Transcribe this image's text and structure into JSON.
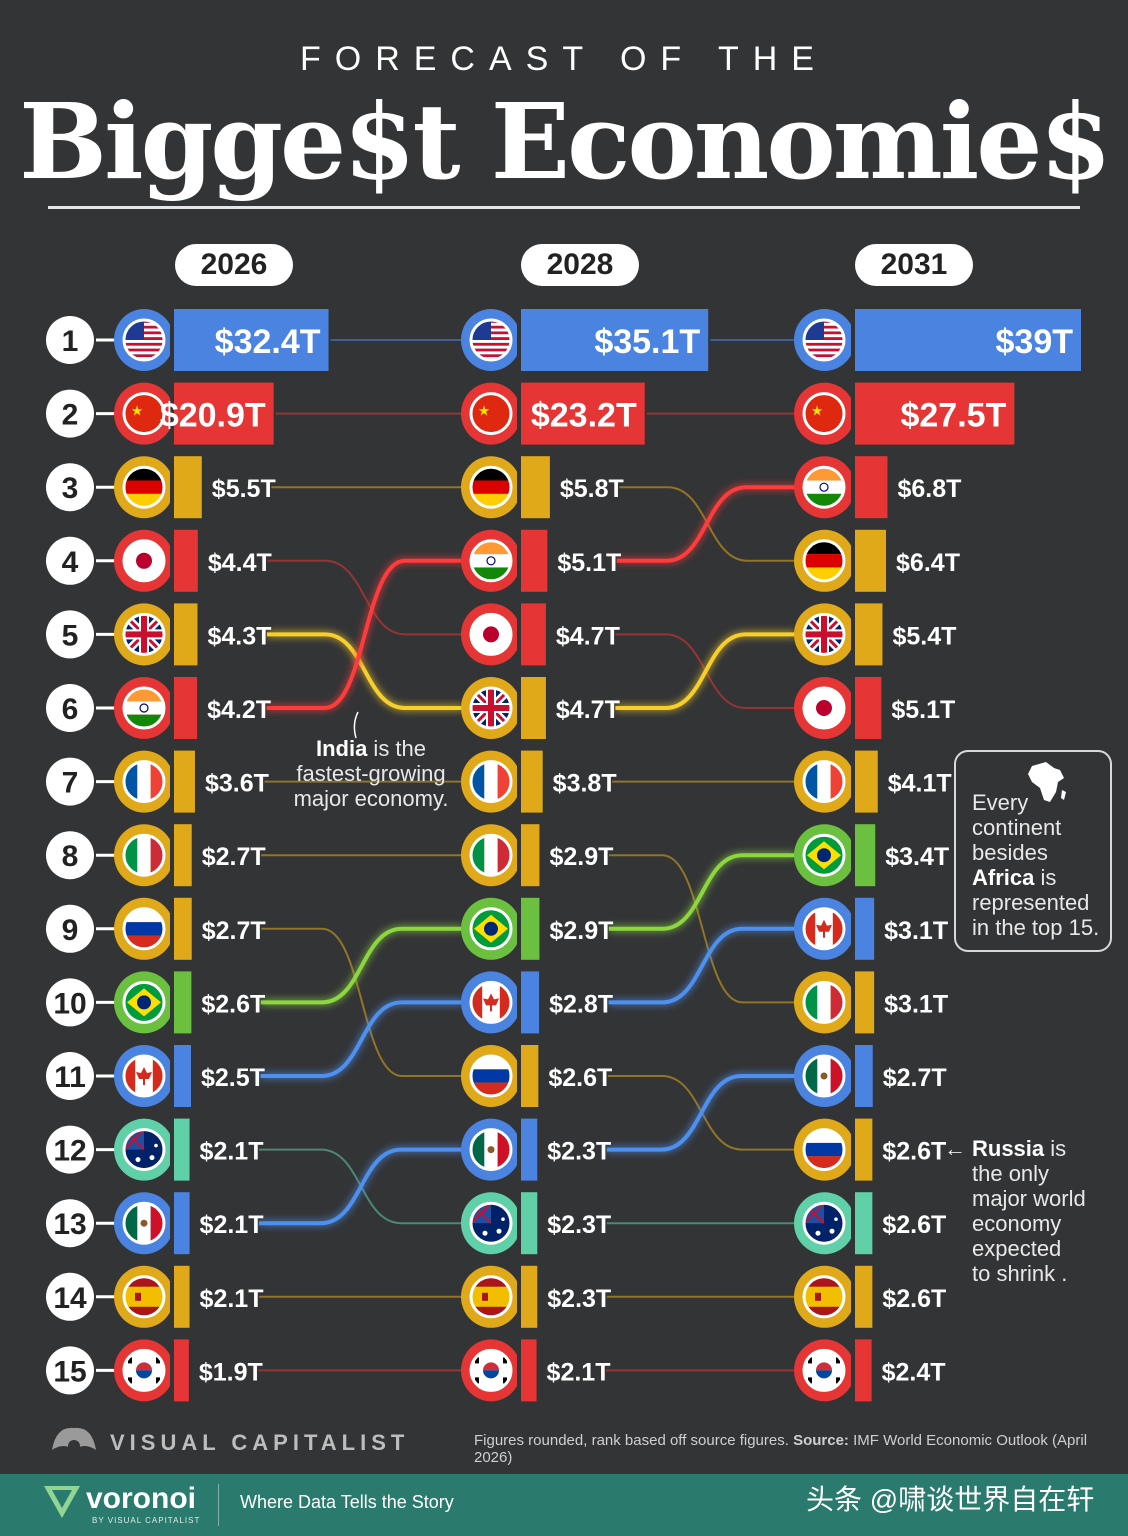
{
  "header": {
    "subtitle": "FORECAST OF THE",
    "title": "Bigge$t Economie$"
  },
  "years": [
    "2026",
    "2028",
    "2031"
  ],
  "colors": {
    "background": "#333436",
    "bar_blue": "#4a84e0",
    "bar_red": "#e53535",
    "bar_yellow": "#e0a91a",
    "bar_green": "#6cc040",
    "bar_teal": "#5fd0a8",
    "line_india": "#ff3b3b",
    "line_brazil": "#8cd640",
    "line_canada": "#4d90ee",
    "line_uk": "#f7cf2a",
    "line_mexico": "#4d90ee"
  },
  "chart_data": {
    "type": "table",
    "title": "Forecast of the Biggest Economies",
    "unit": "T",
    "columns": [
      {
        "year": "2026",
        "rows": [
          {
            "rank": 1,
            "country": "United States",
            "flag": "us-flag-icon",
            "value": 32.4,
            "label": "$32.4T",
            "color": "#4a84e0"
          },
          {
            "rank": 2,
            "country": "China",
            "flag": "cn-flag-icon",
            "value": 20.9,
            "label": "$20.9T",
            "color": "#e53535"
          },
          {
            "rank": 3,
            "country": "Germany",
            "flag": "de-flag-icon",
            "value": 5.5,
            "label": "$5.5T",
            "color": "#e0a91a"
          },
          {
            "rank": 4,
            "country": "Japan",
            "flag": "jp-flag-icon",
            "value": 4.4,
            "label": "$4.4T",
            "color": "#e53535"
          },
          {
            "rank": 5,
            "country": "United Kingdom",
            "flag": "gb-flag-icon",
            "value": 4.3,
            "label": "$4.3T",
            "color": "#e0a91a"
          },
          {
            "rank": 6,
            "country": "India",
            "flag": "in-flag-icon",
            "value": 4.2,
            "label": "$4.2T",
            "color": "#e53535"
          },
          {
            "rank": 7,
            "country": "France",
            "flag": "fr-flag-icon",
            "value": 3.6,
            "label": "$3.6T",
            "color": "#e0a91a"
          },
          {
            "rank": 8,
            "country": "Italy",
            "flag": "it-flag-icon",
            "value": 2.7,
            "label": "$2.7T",
            "color": "#e0a91a"
          },
          {
            "rank": 9,
            "country": "Russia",
            "flag": "ru-flag-icon",
            "value": 2.7,
            "label": "$2.7T",
            "color": "#e0a91a"
          },
          {
            "rank": 10,
            "country": "Brazil",
            "flag": "br-flag-icon",
            "value": 2.6,
            "label": "$2.6T",
            "color": "#6cc040"
          },
          {
            "rank": 11,
            "country": "Canada",
            "flag": "ca-flag-icon",
            "value": 2.5,
            "label": "$2.5T",
            "color": "#4a84e0"
          },
          {
            "rank": 12,
            "country": "Australia",
            "flag": "au-flag-icon",
            "value": 2.1,
            "label": "$2.1T",
            "color": "#5fd0a8"
          },
          {
            "rank": 13,
            "country": "Mexico",
            "flag": "mx-flag-icon",
            "value": 2.1,
            "label": "$2.1T",
            "color": "#4a84e0"
          },
          {
            "rank": 14,
            "country": "Spain",
            "flag": "es-flag-icon",
            "value": 2.1,
            "label": "$2.1T",
            "color": "#e0a91a"
          },
          {
            "rank": 15,
            "country": "South Korea",
            "flag": "kr-flag-icon",
            "value": 1.9,
            "label": "$1.9T",
            "color": "#e53535"
          }
        ]
      },
      {
        "year": "2028",
        "rows": [
          {
            "rank": 1,
            "country": "United States",
            "flag": "us-flag-icon",
            "value": 35.1,
            "label": "$35.1T",
            "color": "#4a84e0"
          },
          {
            "rank": 2,
            "country": "China",
            "flag": "cn-flag-icon",
            "value": 23.2,
            "label": "$23.2T",
            "color": "#e53535"
          },
          {
            "rank": 3,
            "country": "Germany",
            "flag": "de-flag-icon",
            "value": 5.8,
            "label": "$5.8T",
            "color": "#e0a91a"
          },
          {
            "rank": 4,
            "country": "India",
            "flag": "in-flag-icon",
            "value": 5.1,
            "label": "$5.1T",
            "color": "#e53535"
          },
          {
            "rank": 5,
            "country": "Japan",
            "flag": "jp-flag-icon",
            "value": 4.7,
            "label": "$4.7T",
            "color": "#e53535"
          },
          {
            "rank": 6,
            "country": "United Kingdom",
            "flag": "gb-flag-icon",
            "value": 4.7,
            "label": "$4.7T",
            "color": "#e0a91a"
          },
          {
            "rank": 7,
            "country": "France",
            "flag": "fr-flag-icon",
            "value": 3.8,
            "label": "$3.8T",
            "color": "#e0a91a"
          },
          {
            "rank": 8,
            "country": "Italy",
            "flag": "it-flag-icon",
            "value": 2.9,
            "label": "$2.9T",
            "color": "#e0a91a"
          },
          {
            "rank": 9,
            "country": "Brazil",
            "flag": "br-flag-icon",
            "value": 2.9,
            "label": "$2.9T",
            "color": "#6cc040"
          },
          {
            "rank": 10,
            "country": "Canada",
            "flag": "ca-flag-icon",
            "value": 2.8,
            "label": "$2.8T",
            "color": "#4a84e0"
          },
          {
            "rank": 11,
            "country": "Russia",
            "flag": "ru-flag-icon",
            "value": 2.6,
            "label": "$2.6T",
            "color": "#e0a91a"
          },
          {
            "rank": 12,
            "country": "Mexico",
            "flag": "mx-flag-icon",
            "value": 2.3,
            "label": "$2.3T",
            "color": "#4a84e0"
          },
          {
            "rank": 13,
            "country": "Australia",
            "flag": "au-flag-icon",
            "value": 2.3,
            "label": "$2.3T",
            "color": "#5fd0a8"
          },
          {
            "rank": 14,
            "country": "Spain",
            "flag": "es-flag-icon",
            "value": 2.3,
            "label": "$2.3T",
            "color": "#e0a91a"
          },
          {
            "rank": 15,
            "country": "South Korea",
            "flag": "kr-flag-icon",
            "value": 2.1,
            "label": "$2.1T",
            "color": "#e53535"
          }
        ]
      },
      {
        "year": "2031",
        "rows": [
          {
            "rank": 1,
            "country": "United States",
            "flag": "us-flag-icon",
            "value": 39,
            "label": "$39T",
            "color": "#4a84e0"
          },
          {
            "rank": 2,
            "country": "China",
            "flag": "cn-flag-icon",
            "value": 27.5,
            "label": "$27.5T",
            "color": "#e53535"
          },
          {
            "rank": 3,
            "country": "India",
            "flag": "in-flag-icon",
            "value": 6.8,
            "label": "$6.8T",
            "color": "#e53535"
          },
          {
            "rank": 4,
            "country": "Germany",
            "flag": "de-flag-icon",
            "value": 6.4,
            "label": "$6.4T",
            "color": "#e0a91a"
          },
          {
            "rank": 5,
            "country": "United Kingdom",
            "flag": "gb-flag-icon",
            "value": 5.4,
            "label": "$5.4T",
            "color": "#e0a91a"
          },
          {
            "rank": 6,
            "country": "Japan",
            "flag": "jp-flag-icon",
            "value": 5.1,
            "label": "$5.1T",
            "color": "#e53535"
          },
          {
            "rank": 7,
            "country": "France",
            "flag": "fr-flag-icon",
            "value": 4.1,
            "label": "$4.1T",
            "color": "#e0a91a"
          },
          {
            "rank": 8,
            "country": "Brazil",
            "flag": "br-flag-icon",
            "value": 3.4,
            "label": "$3.4T",
            "color": "#6cc040"
          },
          {
            "rank": 9,
            "country": "Canada",
            "flag": "ca-flag-icon",
            "value": 3.1,
            "label": "$3.1T",
            "color": "#4a84e0"
          },
          {
            "rank": 10,
            "country": "Italy",
            "flag": "it-flag-icon",
            "value": 3.1,
            "label": "$3.1T",
            "color": "#e0a91a"
          },
          {
            "rank": 11,
            "country": "Mexico",
            "flag": "mx-flag-icon",
            "value": 2.7,
            "label": "$2.7T",
            "color": "#4a84e0"
          },
          {
            "rank": 12,
            "country": "Russia",
            "flag": "ru-flag-icon",
            "value": 2.6,
            "label": "$2.6T",
            "color": "#e0a91a"
          },
          {
            "rank": 13,
            "country": "Australia",
            "flag": "au-flag-icon",
            "value": 2.6,
            "label": "$2.6T",
            "color": "#5fd0a8"
          },
          {
            "rank": 14,
            "country": "Spain",
            "flag": "es-flag-icon",
            "value": 2.6,
            "label": "$2.6T",
            "color": "#e0a91a"
          },
          {
            "rank": 15,
            "country": "South Korea",
            "flag": "kr-flag-icon",
            "value": 2.4,
            "label": "$2.4T",
            "color": "#e53535"
          }
        ]
      }
    ],
    "highlighted_movers": [
      "India",
      "Brazil",
      "Canada",
      "United Kingdom",
      "Mexico"
    ]
  },
  "annotations": {
    "india_bold": "India",
    "india_rest_1": " is the",
    "india_line2": "fastest-growing",
    "india_line3": "major economy.",
    "africa_line1": "Every",
    "africa_line2": "continent",
    "africa_line3": "besides",
    "africa_bold": "Africa",
    "africa_line4_rest": " is",
    "africa_line5": "represented",
    "africa_line6": "in the top 15.",
    "russia_bold": "Russia",
    "russia_line1_rest": " is",
    "russia_line2": "the only",
    "russia_line3": "major world",
    "russia_line4": "economy",
    "russia_line5": "expected",
    "russia_line6": "to shrink .",
    "russia_arrow": "←"
  },
  "footer": {
    "source_prefix": "Figures rounded, rank based off source figures.",
    "source_label": "Source:",
    "source_text": "IMF World Economic Outlook (April 2026)",
    "vc_brand": "VISUAL CAPITALIST",
    "voronoi": "voronoi",
    "voronoi_sub": "BY VISUAL CAPITALIST",
    "tagline": "Where Data Tells the Story",
    "watermark": "头条 @啸谈世界自在轩"
  }
}
